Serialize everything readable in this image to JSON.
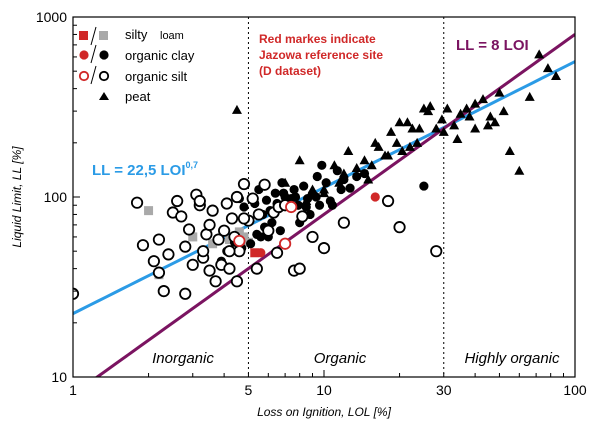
{
  "chart_data": {
    "type": "scatter",
    "xlabel": "Loss on Ignition, LOL [%]",
    "ylabel": "Liquid Limit, LL [%]",
    "x_scale": "log",
    "y_scale": "log",
    "xlim": [
      1,
      100
    ],
    "ylim": [
      10,
      1000
    ],
    "x_ticks": [
      "1",
      "5",
      "10",
      "30",
      "100"
    ],
    "y_ticks": [
      "10",
      "100",
      "1000"
    ],
    "grid": false,
    "legend_position": "top-left",
    "zones": {
      "boundaries": [
        5,
        30
      ],
      "labels": [
        "Inorganic",
        "Organic",
        "Highly organic"
      ]
    },
    "annotations": {
      "note_line1": "Red markes indicate",
      "note_line2": "Jazowa reference site",
      "note_line3": "(D dataset)",
      "fit_blue_main": "LL = 22,5 LOI",
      "fit_blue_exp": "0,7",
      "fit_purple": "LL = 8 LOI"
    },
    "fits": [
      {
        "label": "LL = 22,5 LOI^0,7",
        "coef": 22.5,
        "exp": 0.7,
        "color": "#2b9be6"
      },
      {
        "label": "LL = 8 LOI",
        "coef": 8,
        "exp": 1.0,
        "color": "#7b1461"
      }
    ],
    "legend": [
      {
        "marker": "square",
        "label": "silty",
        "label2": "loam"
      },
      {
        "marker": "filled-circle",
        "label": "organic clay"
      },
      {
        "marker": "open-circle",
        "label": "organic silt"
      },
      {
        "marker": "triangle",
        "label": "peat"
      }
    ],
    "colors": {
      "silty_loam": "#a9a9a9",
      "reference": "#d02828",
      "blue_fit": "#2b9be6",
      "purple_fit": "#7b1461",
      "marker": "#000000"
    },
    "series": [
      {
        "name": "silty loam",
        "marker": "square",
        "x": [
          2.0,
          2.2,
          3.0,
          3.6,
          4.2,
          4.6,
          4.8,
          5.0
        ],
        "y": [
          84,
          37,
          60,
          55,
          58,
          64,
          60,
          56
        ]
      },
      {
        "name": "organic clay",
        "marker": "filled-circle",
        "x": [
          4.8,
          5.3,
          5.5,
          5.7,
          5.9,
          6.2,
          6.4,
          6.6,
          6.8,
          7.0,
          7.3,
          7.6,
          7.9,
          8.3,
          8.6,
          9.0,
          9.4,
          9.8,
          10.2,
          10.8,
          11.3,
          12.0,
          12.7,
          13.5,
          14.5,
          4.6,
          5.0,
          5.4,
          5.8,
          6.1,
          6.5,
          6.9,
          7.4,
          8.0,
          8.8,
          9.6,
          10.6,
          11.7,
          3.9,
          4.1,
          4.4,
          4.7,
          5.1,
          5.6,
          6.0,
          6.7,
          7.7,
          8.5,
          9.3,
          25.0
        ],
        "y": [
          88,
          92,
          110,
          80,
          96,
          72,
          105,
          86,
          120,
          100,
          94,
          110,
          90,
          115,
          98,
          104,
          130,
          150,
          120,
          90,
          140,
          125,
          112,
          130,
          135,
          98,
          75,
          62,
          68,
          84,
          92,
          105,
          98,
          72,
          80,
          90,
          95,
          110,
          44,
          50,
          56,
          52,
          55,
          60,
          60,
          65,
          100,
          88,
          100,
          115
        ]
      },
      {
        "name": "organic silt",
        "marker": "open-circle",
        "x": [
          1.0,
          1.8,
          1.9,
          2.1,
          2.2,
          2.3,
          2.5,
          2.6,
          2.7,
          2.8,
          3.0,
          3.1,
          3.2,
          3.3,
          3.4,
          3.5,
          3.6,
          3.7,
          3.8,
          3.9,
          4.0,
          4.1,
          4.2,
          4.3,
          4.4,
          4.5,
          4.6,
          4.8,
          5.0,
          5.2,
          5.5,
          5.8,
          6.0,
          6.3,
          6.6,
          7.0,
          7.6,
          8.2,
          9.0,
          10.0,
          2.4,
          2.9,
          3.2,
          3.5,
          4.5,
          5.4,
          12.0,
          18.0,
          20.0,
          28.0,
          2.2,
          2.8,
          3.3,
          4.2,
          4.8,
          6.5,
          8.0
        ],
        "y": [
          29,
          93,
          54,
          44,
          58,
          30,
          82,
          95,
          78,
          53,
          42,
          103,
          90,
          46,
          62,
          39,
          84,
          34,
          58,
          42,
          65,
          92,
          40,
          76,
          60,
          100,
          50,
          118,
          74,
          98,
          80,
          117,
          65,
          82,
          88,
          90,
          39,
          78,
          60,
          52,
          48,
          66,
          95,
          70,
          34,
          40,
          72,
          95,
          68,
          50,
          38,
          29,
          50,
          50,
          76,
          49,
          40
        ]
      },
      {
        "name": "peat",
        "marker": "triangle",
        "x": [
          4.5,
          7.0,
          8.5,
          10.0,
          11.5,
          12.5,
          13.5,
          14.5,
          15.5,
          16.5,
          17.5,
          18.5,
          19.5,
          20.5,
          21.5,
          22.5,
          23.5,
          25.0,
          26.5,
          28.0,
          29.5,
          31.0,
          33.0,
          35.0,
          37.0,
          40.0,
          43.0,
          46.0,
          50.0,
          55.0,
          60.0,
          66.0,
          72.0,
          78.0,
          84.0,
          15.0,
          16.0,
          18.0,
          20.0,
          22.0,
          24.0,
          26.0,
          30.0,
          34.0,
          38.0,
          40.0,
          45.0,
          48.0,
          52.0,
          8.0,
          9.0,
          10.0,
          11.0,
          12.0
        ],
        "y": [
          305,
          120,
          95,
          110,
          120,
          180,
          145,
          160,
          150,
          190,
          170,
          230,
          200,
          180,
          260,
          240,
          200,
          310,
          320,
          240,
          270,
          310,
          250,
          290,
          310,
          330,
          350,
          280,
          380,
          180,
          140,
          360,
          620,
          520,
          470,
          125,
          200,
          170,
          260,
          190,
          240,
          300,
          230,
          210,
          280,
          240,
          250,
          260,
          300,
          160,
          110,
          105,
          150,
          135
        ]
      },
      {
        "name": "Jazowa organic clay",
        "marker": "filled-circle",
        "reference": true,
        "x": [
          5.6,
          16.0
        ],
        "y": [
          49,
          100
        ]
      },
      {
        "name": "Jazowa organic silt",
        "marker": "open-circle",
        "reference": true,
        "x": [
          4.6,
          7.0,
          7.4
        ],
        "y": [
          57,
          55,
          88
        ]
      },
      {
        "name": "Jazowa silty loam",
        "marker": "square",
        "reference": true,
        "x": [
          5.3
        ],
        "y": [
          49
        ]
      }
    ]
  }
}
